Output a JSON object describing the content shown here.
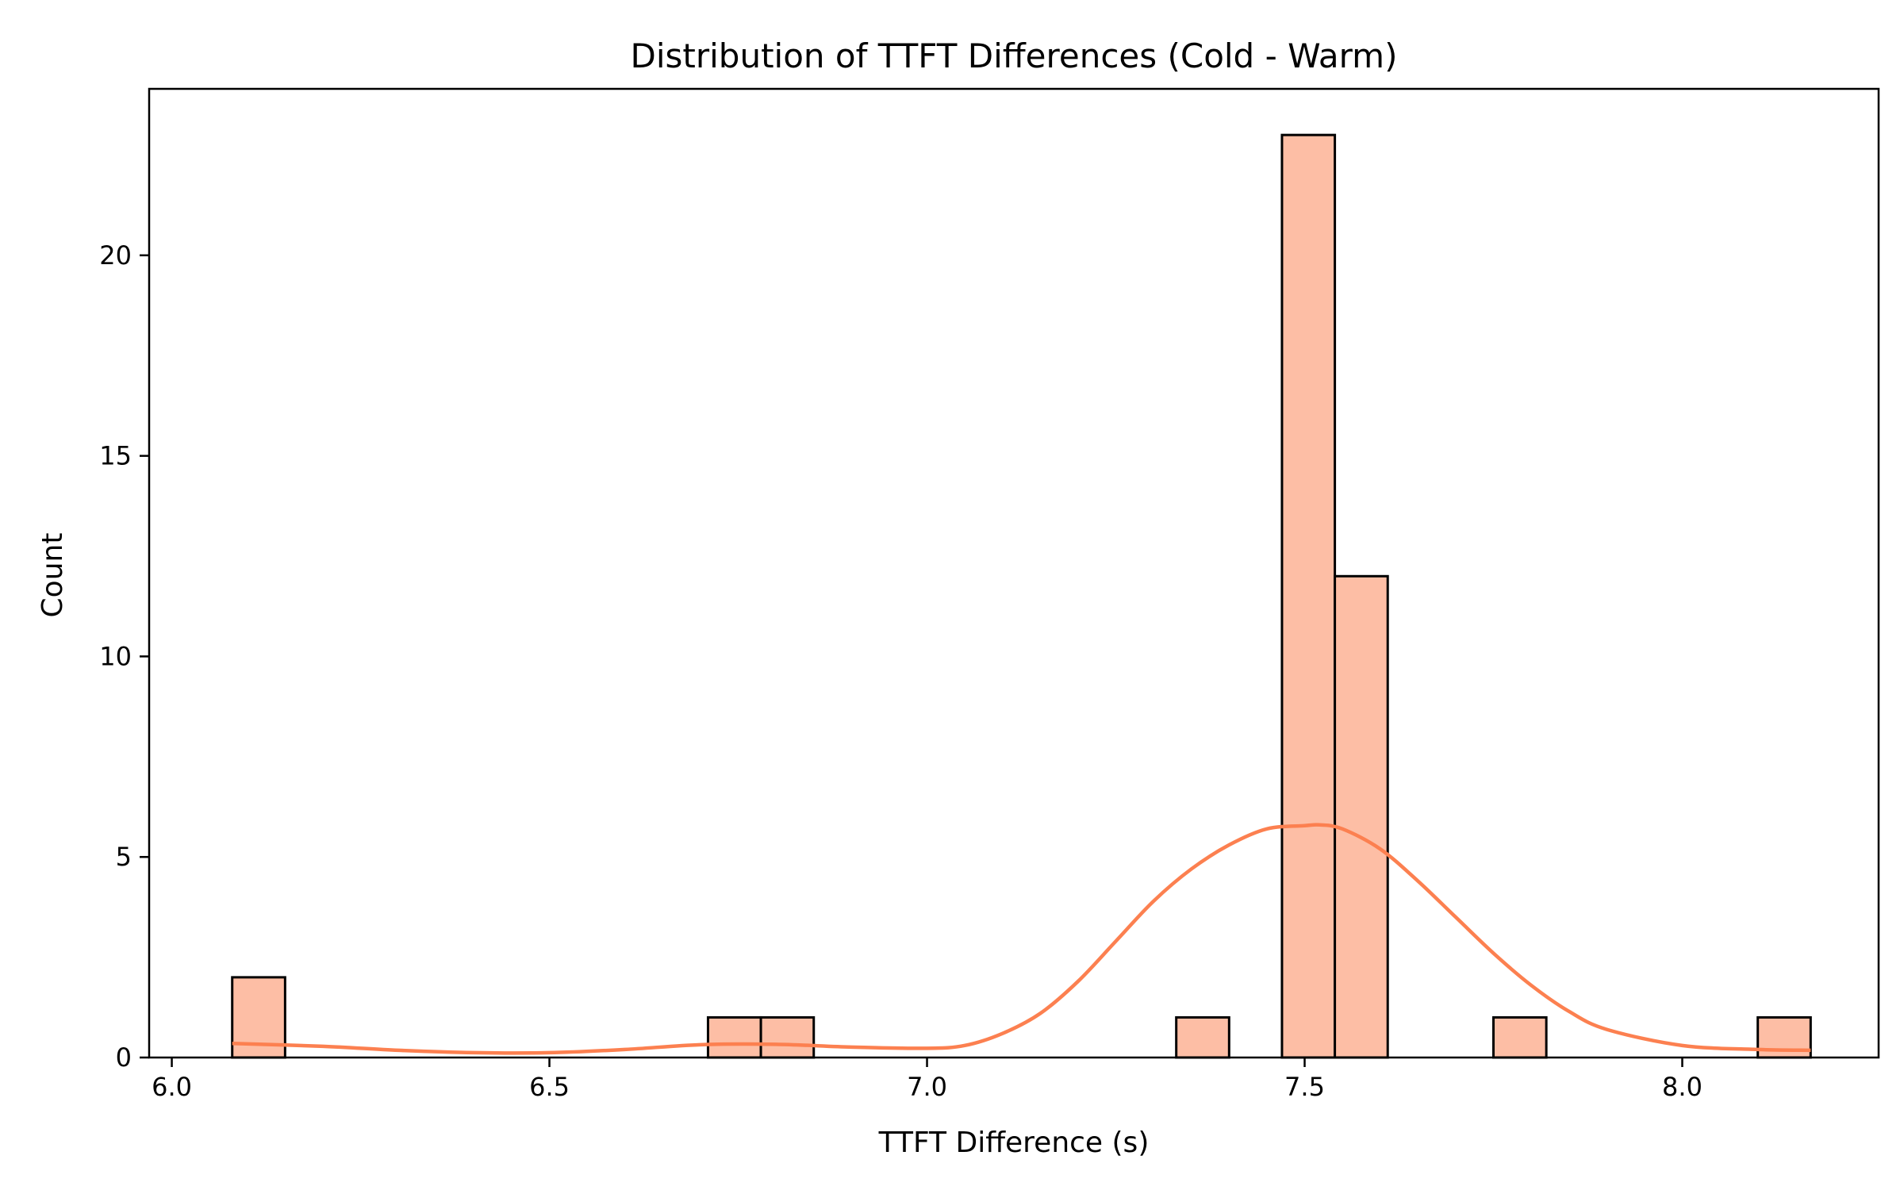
{
  "chart_data": {
    "type": "bar",
    "title": "Distribution of TTFT Differences (Cold - Warm)",
    "xlabel": "TTFT Difference (s)",
    "ylabel": "Count",
    "xlim": [
      5.97,
      8.26
    ],
    "ylim": [
      0,
      24.15
    ],
    "xticks": [
      {
        "value": 6.0,
        "label": "6.0"
      },
      {
        "value": 6.5,
        "label": "6.5"
      },
      {
        "value": 7.0,
        "label": "7.0"
      },
      {
        "value": 7.5,
        "label": "7.5"
      },
      {
        "value": 8.0,
        "label": "8.0"
      }
    ],
    "yticks": [
      {
        "value": 0,
        "label": "0"
      },
      {
        "value": 5,
        "label": "5"
      },
      {
        "value": 10,
        "label": "10"
      },
      {
        "value": 15,
        "label": "15"
      },
      {
        "value": 20,
        "label": "20"
      }
    ],
    "grid": false,
    "bars": [
      {
        "x0": 6.08,
        "x1": 6.15,
        "count": 2
      },
      {
        "x0": 6.71,
        "x1": 6.78,
        "count": 1
      },
      {
        "x0": 6.78,
        "x1": 6.85,
        "count": 1
      },
      {
        "x0": 7.33,
        "x1": 7.4,
        "count": 1
      },
      {
        "x0": 7.47,
        "x1": 7.54,
        "count": 23
      },
      {
        "x0": 7.54,
        "x1": 7.61,
        "count": 12
      },
      {
        "x0": 7.75,
        "x1": 7.82,
        "count": 1
      },
      {
        "x0": 8.1,
        "x1": 8.17,
        "count": 1
      }
    ],
    "kde": {
      "x": [
        6.08,
        6.2,
        6.3,
        6.4,
        6.5,
        6.6,
        6.7,
        6.8,
        6.9,
        7.0,
        7.05,
        7.1,
        7.15,
        7.2,
        7.25,
        7.3,
        7.35,
        7.4,
        7.45,
        7.5,
        7.52,
        7.55,
        7.6,
        7.65,
        7.7,
        7.75,
        7.8,
        7.85,
        7.9,
        8.0,
        8.1,
        8.17
      ],
      "y": [
        0.35,
        0.28,
        0.18,
        0.12,
        0.12,
        0.2,
        0.32,
        0.33,
        0.26,
        0.23,
        0.3,
        0.6,
        1.1,
        1.9,
        2.9,
        3.9,
        4.7,
        5.3,
        5.7,
        5.78,
        5.8,
        5.7,
        5.2,
        4.4,
        3.5,
        2.6,
        1.8,
        1.15,
        0.7,
        0.3,
        0.2,
        0.18
      ]
    },
    "colors": {
      "bar_fill": "#fdbea5",
      "bar_edge": "#000000",
      "kde_line": "#fc8050"
    }
  }
}
